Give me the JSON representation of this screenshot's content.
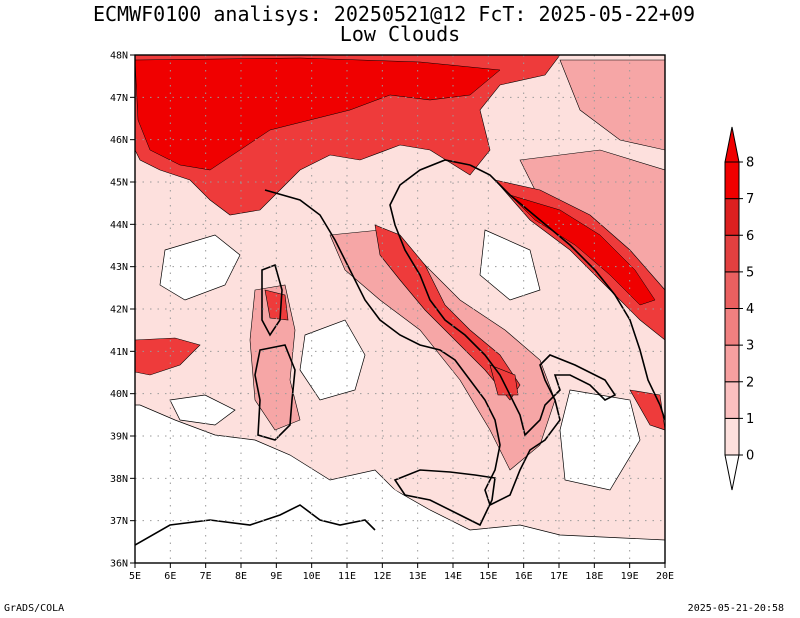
{
  "title": {
    "line1": "ECMWF0100 analisys: 20250521@12 FcT: 2025-05-22+09",
    "line2": "Low Clouds"
  },
  "footer": {
    "left": "GrADS/COLA",
    "right": "2025-05-21-20:58"
  },
  "map": {
    "lat_labels": [
      "48N",
      "47N",
      "46N",
      "45N",
      "44N",
      "43N",
      "42N",
      "41N",
      "40N",
      "39N",
      "38N",
      "37N",
      "36N"
    ],
    "lon_labels": [
      "5E",
      "6E",
      "7E",
      "8E",
      "9E",
      "10E",
      "11E",
      "12E",
      "13E",
      "14E",
      "15E",
      "16E",
      "17E",
      "18E",
      "19E",
      "20E"
    ],
    "grid": "dotted"
  },
  "colorbar": {
    "labels": [
      "0",
      "1",
      "2",
      "3",
      "4",
      "5",
      "6",
      "7",
      "8"
    ],
    "colors": [
      "#ffffff",
      "#fde0dd",
      "#fbc0c0",
      "#f7a0a0",
      "#f08080",
      "#ea6060",
      "#e24040",
      "#dc2020",
      "#f00000"
    ]
  },
  "colors": {
    "cloud_light": "#fde0dd",
    "cloud_mid": "#f6a6a6",
    "cloud_high": "#ee4444",
    "cloud_max": "#f00000"
  }
}
